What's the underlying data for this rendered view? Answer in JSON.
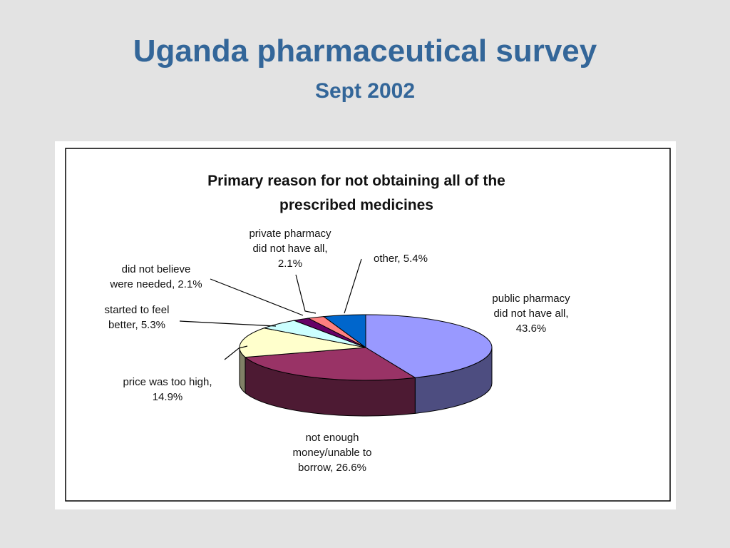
{
  "slide": {
    "title": "Uganda pharmaceutical survey",
    "subtitle": "Sept 2002"
  },
  "chart_data": {
    "type": "pie",
    "title_lines": [
      "Primary reason for not obtaining all of the",
      "prescribed medicines"
    ],
    "slices": [
      {
        "label": "public pharmacy did not have all, 43.6%",
        "label_lines": [
          "public pharmacy",
          "did not have all,",
          "43.6%"
        ],
        "value": 43.6,
        "color": "#9999ff",
        "side_color": "#4d4d80"
      },
      {
        "label": "not enough money/unable to borrow, 26.6%",
        "label_lines": [
          "not enough",
          "money/unable to",
          "borrow, 26.6%"
        ],
        "value": 26.6,
        "color": "#993366",
        "side_color": "#4d1a33"
      },
      {
        "label": "price was too high, 14.9%",
        "label_lines": [
          "price was too high,",
          "14.9%"
        ],
        "value": 14.9,
        "color": "#ffffcc",
        "side_color": "#808066"
      },
      {
        "label": "started to feel better, 5.3%",
        "label_lines": [
          "started to feel",
          "better, 5.3%"
        ],
        "value": 5.3,
        "color": "#ccffff",
        "side_color": "#668080"
      },
      {
        "label": "did not believe were needed, 2.1%",
        "label_lines": [
          "did not believe",
          "were needed, 2.1%"
        ],
        "value": 2.1,
        "color": "#660066",
        "side_color": "#330033"
      },
      {
        "label": "private pharmacy did not have all, 2.1%",
        "label_lines": [
          "private pharmacy",
          "did not have all,",
          "2.1%"
        ],
        "value": 2.1,
        "color": "#ff8080",
        "side_color": "#804040"
      },
      {
        "label": "other, 5.4%",
        "label_lines": [
          "other, 5.4%"
        ],
        "value": 5.4,
        "color": "#0066cc",
        "side_color": "#003366"
      }
    ],
    "legend": "none"
  }
}
